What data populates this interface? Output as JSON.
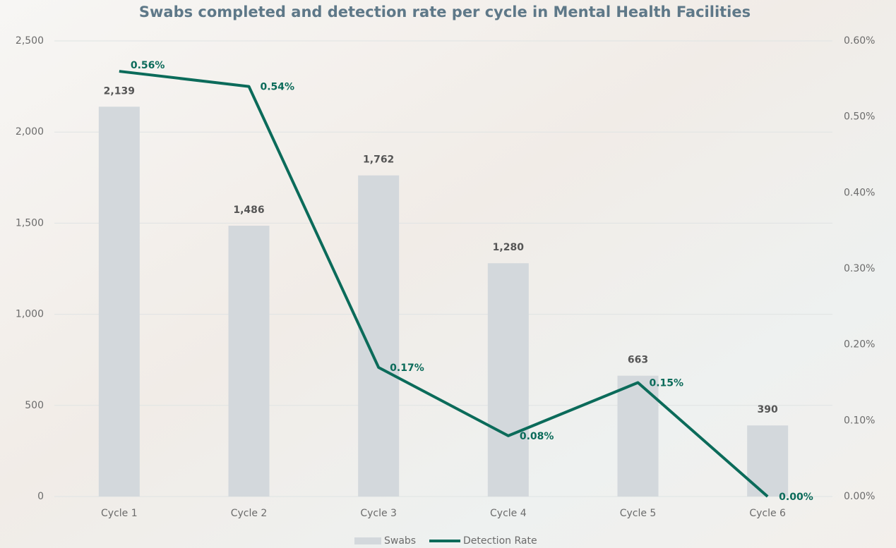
{
  "chart_data": {
    "type": "bar",
    "title": "Swabs completed and detection rate per cycle in Mental Health Facilities",
    "categories": [
      "Cycle 1",
      "Cycle 2",
      "Cycle 3",
      "Cycle 4",
      "Cycle 5",
      "Cycle 6"
    ],
    "series": [
      {
        "name": "Swabs",
        "type": "bar",
        "color": "#d3d8dc",
        "values": [
          2139,
          1486,
          1762,
          1280,
          663,
          390
        ],
        "value_labels": [
          "2,139",
          "1,486",
          "1,762",
          "1,280",
          "663",
          "390"
        ]
      },
      {
        "name": "Detection Rate",
        "type": "line",
        "axis": "y2",
        "color": "#0b6b5a",
        "values": [
          0.56,
          0.54,
          0.17,
          0.08,
          0.15,
          0.0
        ],
        "value_labels": [
          "0.56%",
          "0.54%",
          "0.17%",
          "0.08%",
          "0.15%",
          "0.00%"
        ]
      }
    ],
    "ylim": [
      0,
      2500
    ],
    "yticks": [
      0,
      500,
      {
        "value": 1000,
        "label": "1,000"
      },
      {
        "value": 1500,
        "label": "1,500"
      },
      {
        "value": 2000,
        "label": "2,000"
      },
      {
        "value": 2500,
        "label": "2,500"
      }
    ],
    "y2lim": [
      0,
      0.6
    ],
    "y2ticks": [
      {
        "value": 0,
        "label": "0.00%"
      },
      {
        "value": 0.1,
        "label": "0.10%"
      },
      {
        "value": 0.2,
        "label": "0.20%"
      },
      {
        "value": 0.3,
        "label": "0.30%"
      },
      {
        "value": 0.4,
        "label": "0.40%"
      },
      {
        "value": 0.5,
        "label": "0.50%"
      },
      {
        "value": 0.6,
        "label": "0.60%"
      }
    ],
    "grid": true,
    "legend": "bottom"
  }
}
